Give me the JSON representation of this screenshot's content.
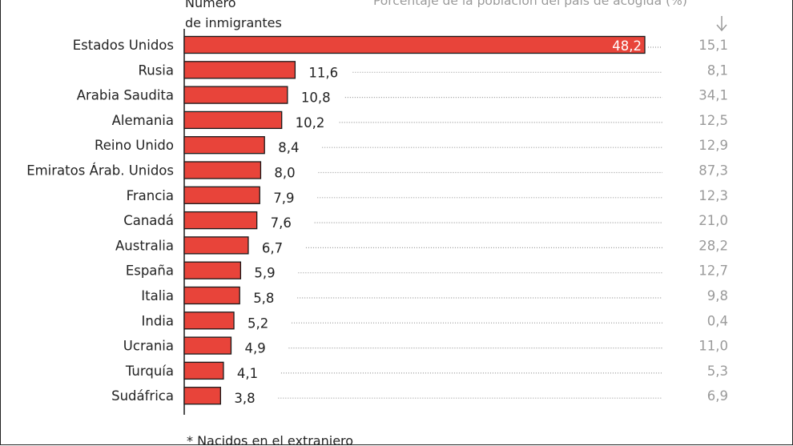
{
  "header": {
    "left_line1": "Número",
    "left_line2": "de inmigrantes",
    "right": "Porcentaje de la población del país de acogida (%)"
  },
  "footnote": "* Nacidos en el extranjero",
  "colors": {
    "bar": "#e8443a",
    "bar_stroke": "#1a1a1a",
    "dots": "#9a9a9a",
    "pct": "#9a9a9a"
  },
  "chart_data": {
    "type": "bar",
    "orientation": "horizontal",
    "categories": [
      "Estados Unidos",
      "Rusia",
      "Arabia Saudita",
      "Alemania",
      "Reino Unido",
      "Emiratos Árab. Unidos",
      "Francia",
      "Canadá",
      "Australia",
      "España",
      "Italia",
      "India",
      "Ucrania",
      "Turquía",
      "Sudáfrica"
    ],
    "value_labels": [
      "48,2",
      "11,6",
      "10,8",
      "10,2",
      "8,4",
      "8,0",
      "7,9",
      "7,6",
      "6,7",
      "5,9",
      "5,8",
      "5,2",
      "4,9",
      "4,1",
      "3,8"
    ],
    "values": [
      48.2,
      11.6,
      10.8,
      10.2,
      8.4,
      8.0,
      7.9,
      7.6,
      6.7,
      5.9,
      5.8,
      5.2,
      4.9,
      4.1,
      3.8
    ],
    "secondary_labels": [
      "15,1",
      "8,1",
      "34,1",
      "12,5",
      "12,9",
      "87,3",
      "12,3",
      "21,0",
      "28,2",
      "12,7",
      "9,8",
      "0,4",
      "11,0",
      "5,3",
      "6,9"
    ],
    "secondary_values": [
      15.1,
      8.1,
      34.1,
      12.5,
      12.9,
      87.3,
      12.3,
      21.0,
      28.2,
      12.7,
      9.8,
      0.4,
      11.0,
      5.3,
      6.9
    ]
  }
}
